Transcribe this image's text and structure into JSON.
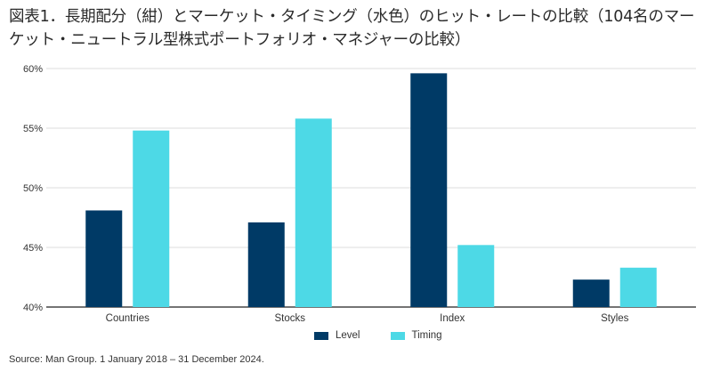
{
  "title": "図表1．長期配分（紺）とマーケット・タイミング（水色）のヒット・レートの比較（104名のマーケット・ニュートラル型株式ポートフォリオ・マネジャーの比較）",
  "source": "Source: Man Group. 1 January 2018 – 31 December 2024.",
  "colors": {
    "level": "#003a66",
    "timing": "#4dd9e6",
    "axis": "#222222",
    "grid": "#dddddd"
  },
  "chart_data": {
    "type": "bar",
    "categories": [
      "Countries",
      "Stocks",
      "Index",
      "Styles"
    ],
    "series": [
      {
        "name": "Level",
        "values": [
          48.1,
          47.1,
          59.6,
          42.3
        ]
      },
      {
        "name": "Timing",
        "values": [
          54.8,
          55.8,
          45.2,
          43.3
        ]
      }
    ],
    "ylim": [
      40,
      60
    ],
    "yticks": [
      "40%",
      "45%",
      "50%",
      "55%",
      "60%"
    ],
    "ytick_values": [
      40,
      45,
      50,
      55,
      60
    ],
    "legend": "bottom-center",
    "grid": true
  }
}
